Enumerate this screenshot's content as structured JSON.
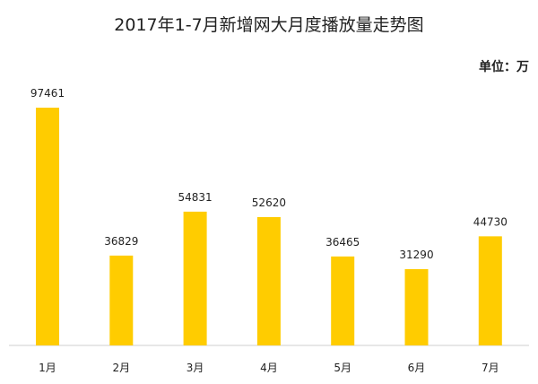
{
  "chart_data": {
    "type": "bar",
    "title": "2017年1-7月新增网大月度播放量走势图",
    "unit_label": "单位：万",
    "categories": [
      "1月",
      "2月",
      "3月",
      "4月",
      "5月",
      "6月",
      "7月"
    ],
    "values": [
      97461,
      36829,
      54831,
      52620,
      36465,
      31290,
      44730
    ],
    "color": "#ffcc00"
  }
}
